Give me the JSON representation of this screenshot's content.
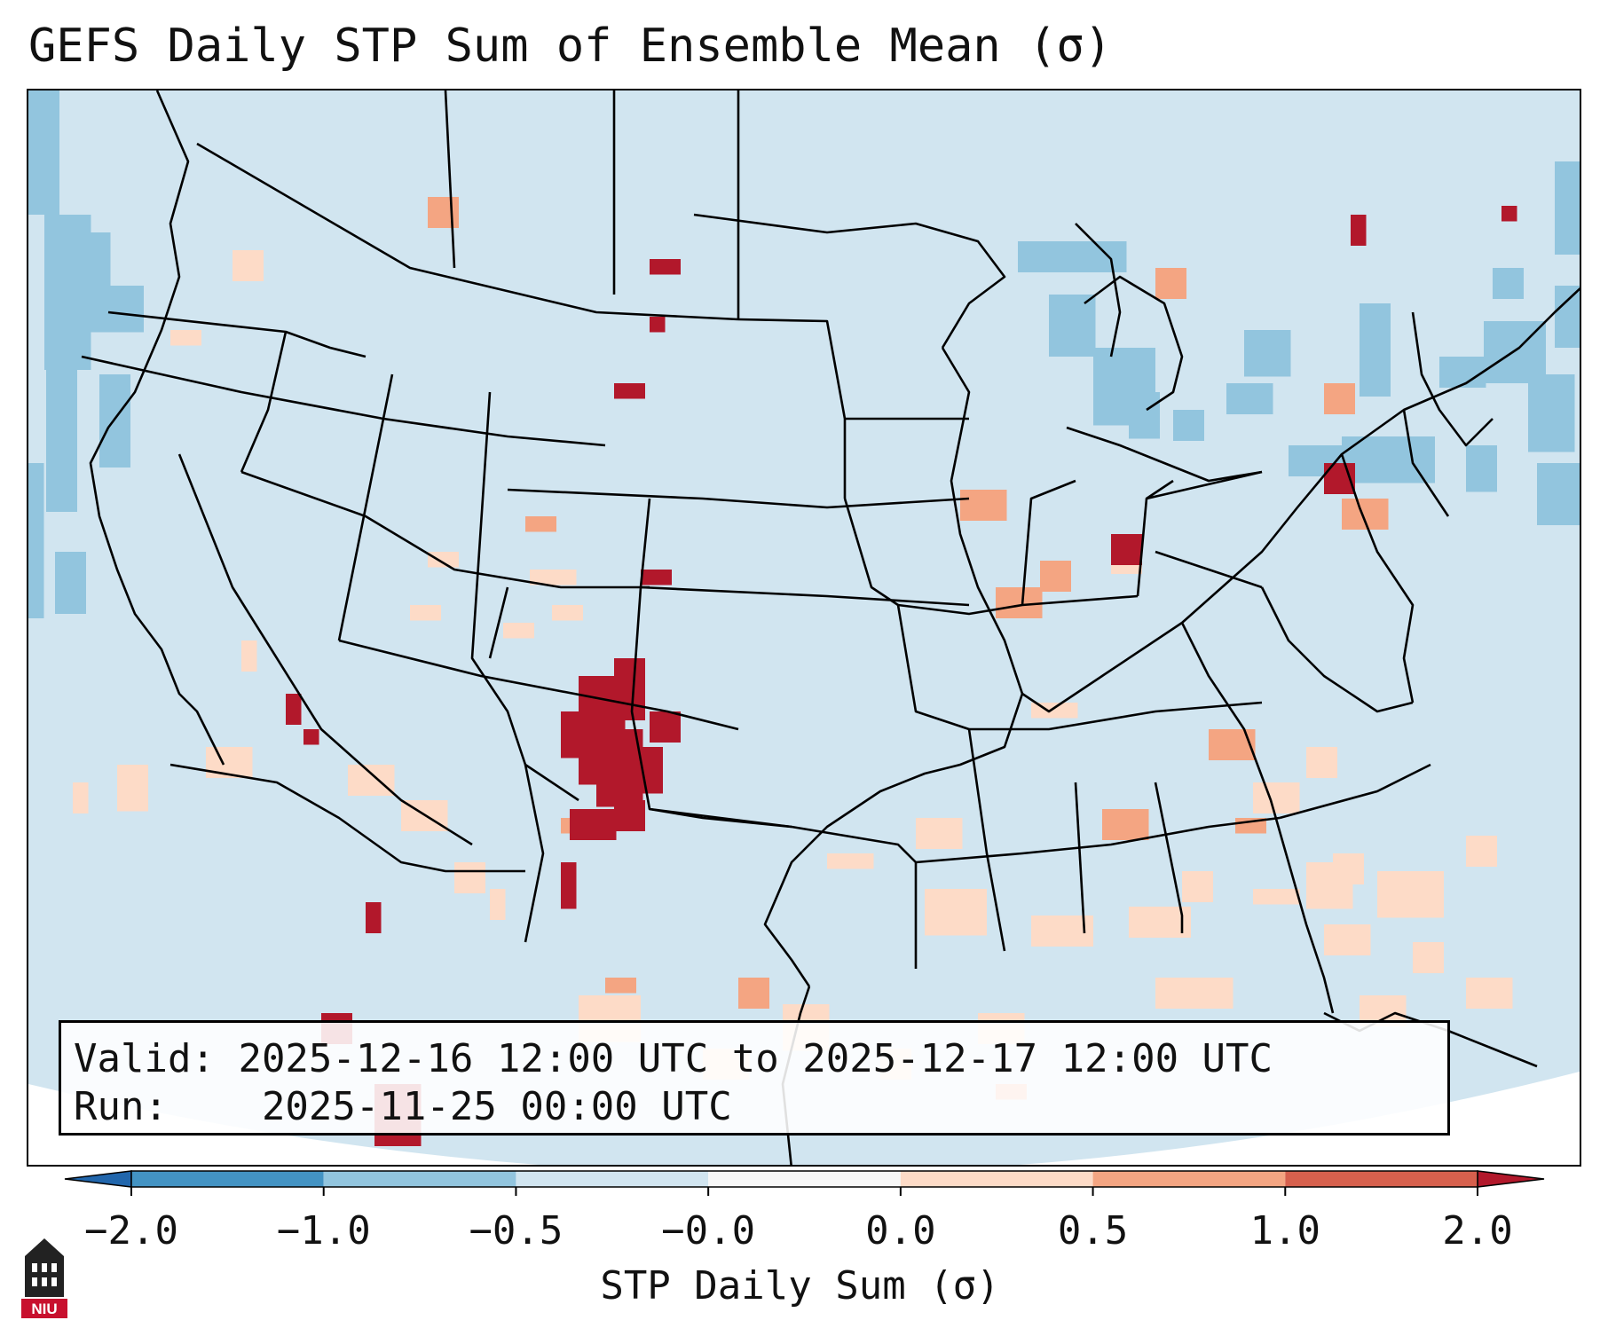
{
  "title": "GEFS Daily STP Sum of Ensemble Mean (σ)",
  "info": {
    "valid_label": "Valid:",
    "valid_value": "2025-12-16 12:00 UTC to 2025-12-17 12:00 UTC",
    "run_label": "Run:",
    "run_value": "2025-11-25 00:00 UTC"
  },
  "colorbar": {
    "label": "STP Daily Sum (σ)",
    "ticks": [
      "−2.0",
      "−1.0",
      "−0.5",
      "−0.0",
      "0.0",
      "0.5",
      "1.0",
      "2.0"
    ],
    "bins": [
      {
        "from": -2.0,
        "to": -1.0,
        "color": "#4393c3"
      },
      {
        "from": -1.0,
        "to": -0.5,
        "color": "#92c5de"
      },
      {
        "from": -0.5,
        "to": -0.0,
        "color": "#d1e5f0"
      },
      {
        "from": -0.0,
        "to": 0.0,
        "color": "#f7f7f7"
      },
      {
        "from": 0.0,
        "to": 0.5,
        "color": "#fddbc7"
      },
      {
        "from": 0.5,
        "to": 1.0,
        "color": "#f4a582"
      },
      {
        "from": 1.0,
        "to": 2.0,
        "color": "#d6604d"
      }
    ],
    "under_color": "#2166ac",
    "over_color": "#b2182b"
  },
  "map": {
    "background_color": "#d1e5f0",
    "border_color": "#000000"
  },
  "logo": {
    "text": "NIU",
    "color": "#c8102e"
  }
}
